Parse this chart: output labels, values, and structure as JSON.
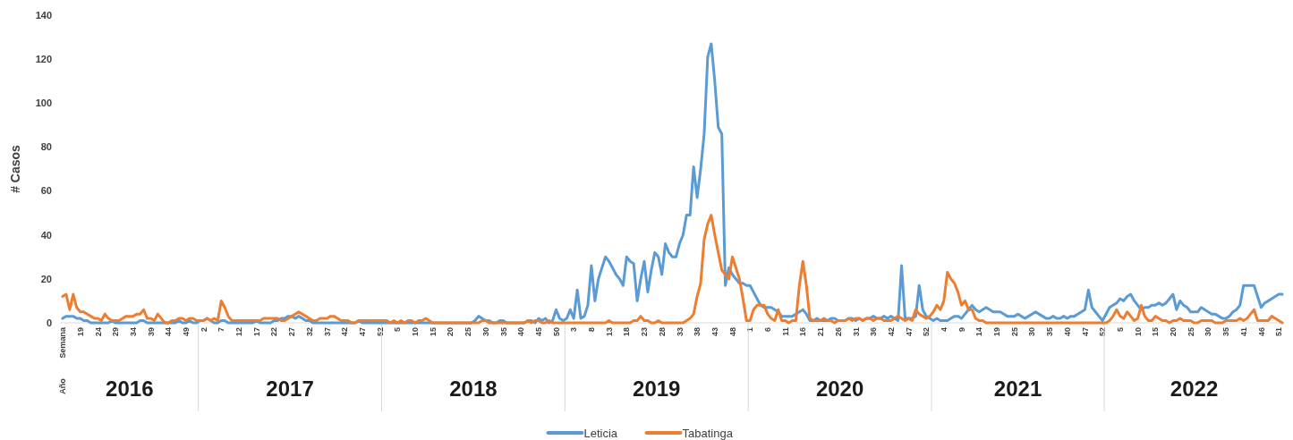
{
  "chart_data": {
    "type": "line",
    "ylabel": "# Casos",
    "ylim": [
      0,
      140
    ],
    "yticks": [
      0,
      20,
      40,
      60,
      80,
      100,
      120,
      140
    ],
    "legend": "bottom",
    "annotations": [
      "Año",
      "2016",
      "2017",
      "2018",
      "2019",
      "2020",
      "2021",
      "2022"
    ],
    "categories": [
      "Semana",
      null,
      null,
      null,
      null,
      "19",
      null,
      null,
      null,
      null,
      "24",
      null,
      null,
      null,
      null,
      "29",
      null,
      null,
      null,
      null,
      "34",
      null,
      null,
      null,
      null,
      "39",
      null,
      null,
      null,
      null,
      "44",
      null,
      null,
      null,
      null,
      "49",
      null,
      null,
      null,
      null,
      "2",
      null,
      null,
      null,
      null,
      "7",
      null,
      null,
      null,
      null,
      "12",
      null,
      null,
      null,
      null,
      "17",
      null,
      null,
      null,
      null,
      "22",
      null,
      null,
      null,
      null,
      "27",
      null,
      null,
      null,
      null,
      "32",
      null,
      null,
      null,
      null,
      "37",
      null,
      null,
      null,
      null,
      "42",
      null,
      null,
      null,
      null,
      "47",
      null,
      null,
      null,
      null,
      "52",
      null,
      null,
      null,
      null,
      "5",
      null,
      null,
      null,
      null,
      "10",
      null,
      null,
      null,
      null,
      "15",
      null,
      null,
      null,
      null,
      "20",
      null,
      null,
      null,
      null,
      "25",
      null,
      null,
      null,
      null,
      "30",
      null,
      null,
      null,
      null,
      "35",
      null,
      null,
      null,
      null,
      "40",
      null,
      null,
      null,
      null,
      "45",
      null,
      null,
      null,
      null,
      "50",
      null,
      null,
      null,
      null,
      "3",
      null,
      null,
      null,
      null,
      "8",
      null,
      null,
      null,
      null,
      "13",
      null,
      null,
      null,
      null,
      "18",
      null,
      null,
      null,
      null,
      "23",
      null,
      null,
      null,
      null,
      "28",
      null,
      null,
      null,
      null,
      "33",
      null,
      null,
      null,
      null,
      "38",
      null,
      null,
      null,
      null,
      "43",
      null,
      null,
      null,
      null,
      "48",
      null,
      null,
      null,
      null,
      "1",
      null,
      null,
      null,
      null,
      "6",
      null,
      null,
      null,
      null,
      "11",
      null,
      null,
      null,
      null,
      "16",
      null,
      null,
      null,
      null,
      "21",
      null,
      null,
      null,
      null,
      "26",
      null,
      null,
      null,
      null,
      "31",
      null,
      null,
      null,
      null,
      "36",
      null,
      null,
      null,
      null,
      "42",
      null,
      null,
      null,
      null,
      "47",
      null,
      null,
      null,
      null,
      "52",
      null,
      null,
      null,
      null,
      "4",
      null,
      null,
      null,
      null,
      "9",
      null,
      null,
      null,
      null,
      "14",
      null,
      null,
      null,
      null,
      "19",
      null,
      null,
      null,
      null,
      "25",
      null,
      null,
      null,
      null,
      "30",
      null,
      null,
      null,
      null,
      "35",
      null,
      null,
      null,
      null,
      "40",
      null,
      null,
      null,
      null,
      "47",
      null,
      null,
      null,
      null,
      "52",
      null,
      null,
      null,
      null,
      "5",
      null,
      null,
      null,
      null,
      "10",
      null,
      null,
      null,
      null,
      "15",
      null,
      null,
      null,
      null,
      "20",
      null,
      null,
      null,
      null,
      "25",
      null,
      null,
      null,
      null,
      "30",
      null,
      null,
      null,
      null,
      "35",
      null,
      null,
      null,
      null,
      "41",
      null,
      null,
      null,
      null,
      "46",
      null,
      null,
      null,
      null,
      "51",
      null
    ],
    "series": [
      {
        "name": "Leticia",
        "color": "#5b9bd5",
        "values": [
          2,
          3,
          3,
          3,
          2,
          2,
          1,
          1,
          0,
          0,
          0,
          0,
          0,
          0,
          1,
          0,
          0,
          0,
          0,
          0,
          0,
          0,
          1,
          1,
          0,
          0,
          0,
          0,
          0,
          0,
          0,
          0,
          0,
          1,
          0,
          0,
          1,
          0,
          0,
          1,
          1,
          2,
          1,
          0,
          0,
          1,
          1,
          0,
          0,
          0,
          0,
          0,
          0,
          0,
          0,
          1,
          0,
          0,
          0,
          0,
          1,
          1,
          2,
          2,
          3,
          3,
          2,
          3,
          2,
          1,
          1,
          0,
          0,
          0,
          0,
          0,
          0,
          0,
          0,
          0,
          0,
          0,
          0,
          0,
          1,
          0,
          0,
          0,
          0,
          0,
          0,
          0,
          0,
          0,
          0,
          0,
          0,
          0,
          0,
          0,
          0,
          0,
          0,
          0,
          0,
          0,
          0,
          0,
          0,
          0,
          0,
          0,
          0,
          0,
          0,
          0,
          0,
          1,
          3,
          2,
          1,
          1,
          0,
          0,
          1,
          1,
          0,
          0,
          0,
          0,
          0,
          0,
          1,
          1,
          0,
          2,
          1,
          2,
          0,
          1,
          6,
          2,
          1,
          2,
          6,
          2,
          15,
          2,
          3,
          8,
          26,
          10,
          20,
          25,
          30,
          28,
          25,
          22,
          20,
          17,
          30,
          28,
          27,
          10,
          20,
          28,
          14,
          24,
          32,
          30,
          22,
          36,
          32,
          30,
          30,
          36,
          40,
          49,
          49,
          71,
          57,
          70,
          86,
          121,
          127,
          110,
          89,
          86,
          17,
          25,
          22,
          20,
          18,
          18,
          17,
          17,
          14,
          11,
          8,
          7,
          7,
          7,
          6,
          5,
          3,
          3,
          3,
          3,
          4,
          5,
          6,
          4,
          1,
          1,
          2,
          1,
          1,
          1,
          2,
          2,
          1,
          1,
          1,
          2,
          2,
          1,
          2,
          1,
          2,
          2,
          3,
          2,
          2,
          3,
          2,
          3,
          2,
          1,
          26,
          2,
          2,
          2,
          3,
          17,
          6,
          3,
          2,
          1,
          2,
          1,
          1,
          1,
          2,
          3,
          3,
          2,
          4,
          6,
          8,
          6,
          5,
          6,
          7,
          6,
          5,
          5,
          5,
          4,
          3,
          3,
          3,
          4,
          3,
          2,
          3,
          4,
          5,
          4,
          3,
          2,
          2,
          3,
          2,
          2,
          3,
          2,
          3,
          3,
          4,
          5,
          6,
          15,
          7,
          5,
          3,
          1,
          4,
          7,
          8,
          9,
          11,
          10,
          12,
          13,
          10,
          8,
          6,
          7,
          7,
          8,
          8,
          9,
          8,
          9,
          11,
          13,
          6,
          10,
          8,
          7,
          5,
          5,
          5,
          7,
          6,
          5,
          4,
          4,
          3,
          2,
          2,
          3,
          5,
          6,
          8,
          17,
          17,
          17,
          17,
          12,
          7,
          9,
          10,
          11,
          12,
          13,
          13
        ]
      },
      {
        "name": "Tabatinga",
        "color": "#ed7d31",
        "values": [
          12,
          13,
          6,
          13,
          7,
          5,
          5,
          4,
          3,
          2,
          2,
          1,
          4,
          2,
          1,
          1,
          1,
          2,
          3,
          3,
          3,
          4,
          4,
          6,
          2,
          2,
          1,
          4,
          2,
          0,
          0,
          1,
          1,
          2,
          2,
          1,
          2,
          2,
          1,
          1,
          1,
          2,
          1,
          2,
          1,
          10,
          7,
          3,
          1,
          1,
          1,
          1,
          1,
          1,
          1,
          1,
          1,
          2,
          2,
          2,
          2,
          2,
          1,
          1,
          2,
          3,
          4,
          5,
          4,
          3,
          2,
          1,
          1,
          2,
          2,
          2,
          3,
          3,
          2,
          1,
          1,
          1,
          0,
          0,
          1,
          1,
          1,
          1,
          1,
          1,
          1,
          1,
          1,
          0,
          1,
          0,
          1,
          0,
          1,
          1,
          0,
          1,
          1,
          2,
          1,
          0,
          0,
          0,
          0,
          0,
          0,
          0,
          0,
          0,
          0,
          0,
          0,
          0,
          0,
          1,
          1,
          0,
          0,
          0,
          0,
          0,
          0,
          0,
          0,
          0,
          0,
          0,
          1,
          0,
          1,
          1,
          0,
          0,
          1,
          0,
          0,
          0,
          0,
          0,
          0,
          0,
          0,
          0,
          0,
          0,
          0,
          0,
          0,
          0,
          0,
          1,
          0,
          0,
          0,
          0,
          0,
          0,
          1,
          1,
          3,
          1,
          1,
          0,
          0,
          1,
          0,
          0,
          0,
          0,
          0,
          0,
          0,
          1,
          2,
          4,
          12,
          18,
          38,
          45,
          49,
          40,
          32,
          24,
          22,
          20,
          30,
          25,
          20,
          11,
          1,
          1,
          6,
          8,
          8,
          8,
          4,
          2,
          1,
          6,
          1,
          1,
          0,
          1,
          1,
          17,
          28,
          17,
          2,
          1,
          1,
          1,
          2,
          1,
          1,
          0,
          1,
          1,
          1,
          2,
          1,
          2,
          2,
          1,
          2,
          2,
          1,
          2,
          2,
          1,
          1,
          1,
          2,
          3,
          2,
          1,
          2,
          1,
          6,
          4,
          3,
          2,
          3,
          5,
          8,
          6,
          10,
          23,
          20,
          18,
          14,
          8,
          10,
          6,
          6,
          2,
          1,
          1,
          0,
          0,
          0,
          0,
          0,
          0,
          0,
          0,
          0,
          0,
          0,
          0,
          0,
          0,
          0,
          0,
          0,
          0,
          0,
          0,
          0,
          0,
          0,
          0,
          0,
          0,
          0,
          0,
          0,
          0,
          0,
          0,
          0,
          0,
          0,
          1,
          3,
          6,
          3,
          2,
          5,
          3,
          1,
          2,
          8,
          3,
          1,
          1,
          3,
          2,
          1,
          1,
          0,
          1,
          1,
          2,
          1,
          1,
          1,
          0,
          0,
          1,
          1,
          1,
          1,
          0,
          0,
          0,
          1,
          1,
          1,
          1,
          2,
          1,
          2,
          4,
          6,
          1,
          1,
          1,
          1,
          3,
          2,
          1,
          0
        ]
      }
    ]
  }
}
